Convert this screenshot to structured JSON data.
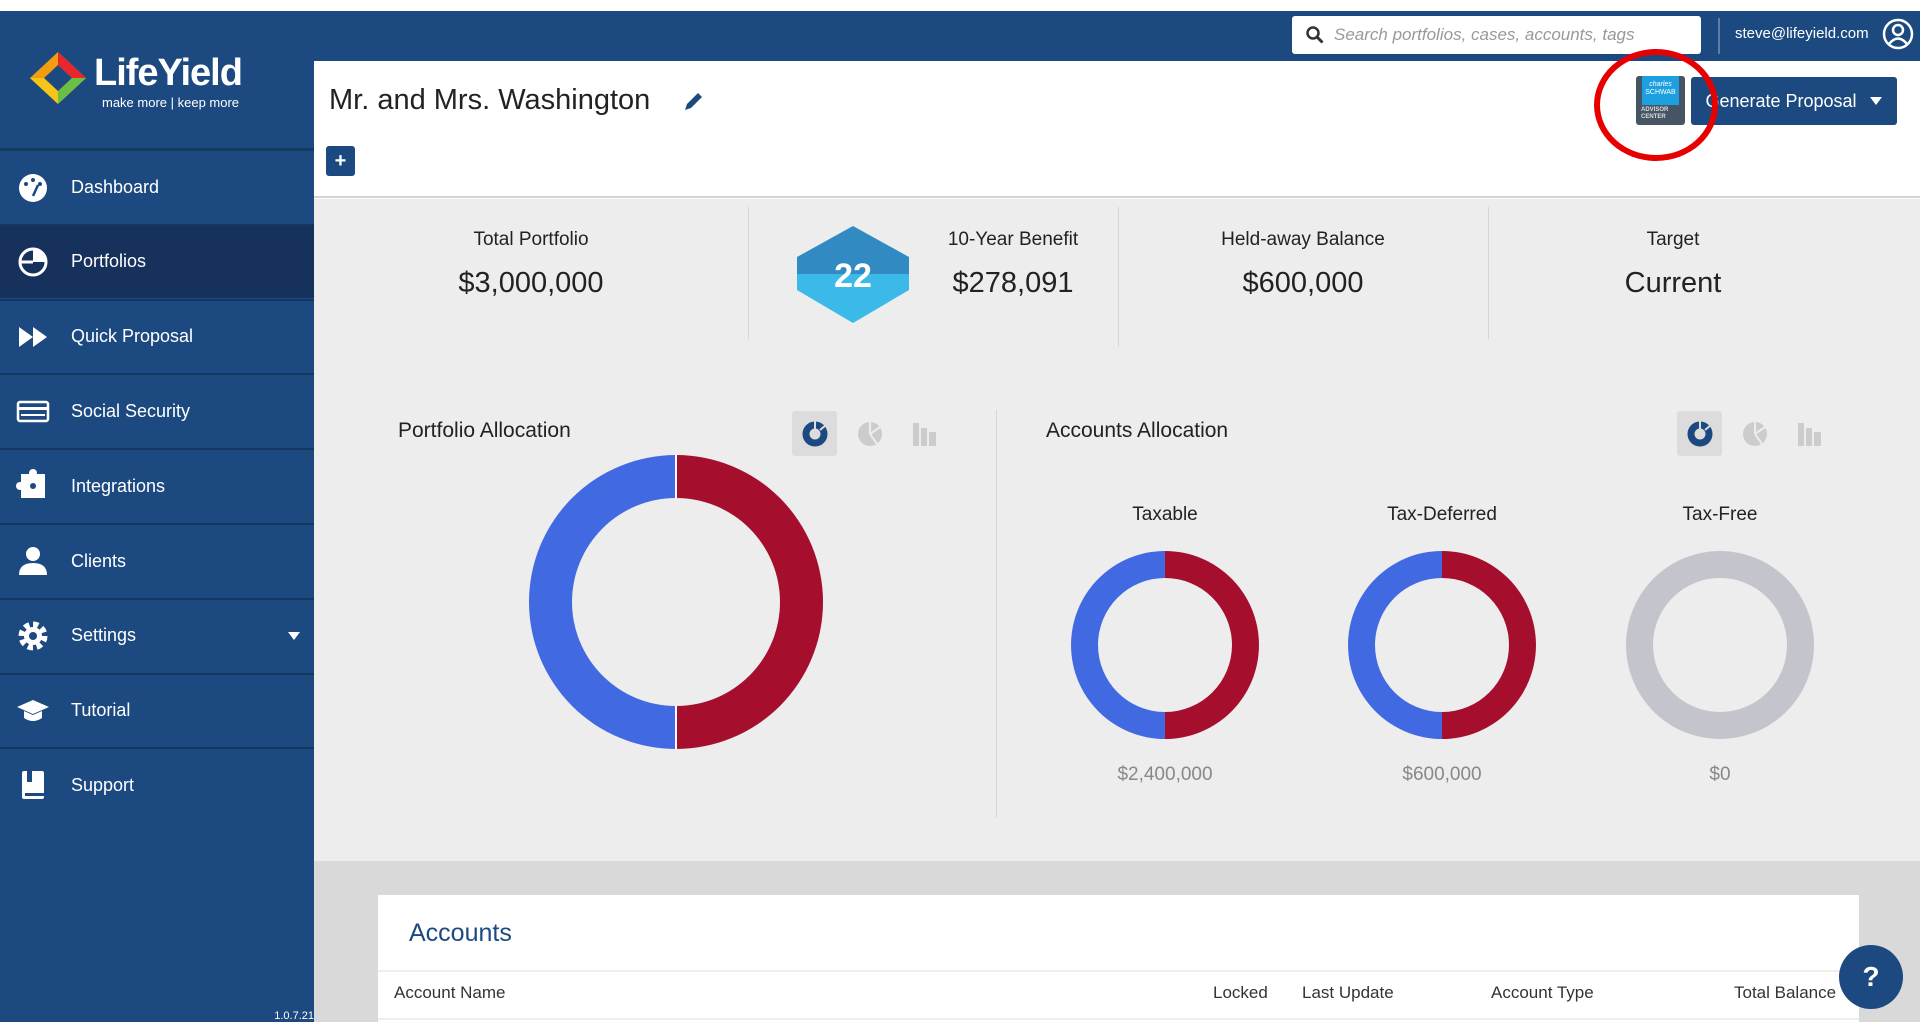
{
  "brand": {
    "name": "LifeYield",
    "tagline": "make more | keep more",
    "version": "1.0.7.21"
  },
  "topbar": {
    "search_placeholder": "Search portfolios, cases, accounts, tags",
    "user_email": "steve@lifeyield.com"
  },
  "sidebar": {
    "items": [
      {
        "label": "Dashboard",
        "icon": "dashboard-icon"
      },
      {
        "label": "Portfolios",
        "icon": "portfolio-icon",
        "active": true
      },
      {
        "label": "Quick Proposal",
        "icon": "fast-forward-icon"
      },
      {
        "label": "Social Security",
        "icon": "card-icon"
      },
      {
        "label": "Integrations",
        "icon": "puzzle-icon"
      },
      {
        "label": "Clients",
        "icon": "user-icon"
      },
      {
        "label": "Settings",
        "icon": "gear-icon"
      },
      {
        "label": "Tutorial",
        "icon": "graduation-cap-icon"
      },
      {
        "label": "Support",
        "icon": "book-icon"
      }
    ]
  },
  "header": {
    "title": "Mr. and Mrs. Washington",
    "add_label": "+",
    "generate_label": "Generate Proposal",
    "schwab": {
      "line1": "charles",
      "line2": "SCHWAB",
      "line3": "ADVISOR",
      "line4": "CENTER"
    }
  },
  "stats": {
    "total_portfolio": {
      "label": "Total Portfolio",
      "value": "$3,000,000"
    },
    "benefit": {
      "score": "22",
      "label": "10-Year Benefit",
      "value": "$278,091"
    },
    "held_away": {
      "label": "Held-away Balance",
      "value": "$600,000"
    },
    "target": {
      "label": "Target",
      "value": "Current"
    }
  },
  "portfolio_allocation": {
    "title": "Portfolio Allocation"
  },
  "accounts_allocation": {
    "title": "Accounts Allocation",
    "groups": [
      {
        "label": "Taxable",
        "amount": "$2,400,000"
      },
      {
        "label": "Tax-Deferred",
        "amount": "$600,000"
      },
      {
        "label": "Tax-Free",
        "amount": "$0"
      }
    ]
  },
  "colors": {
    "brand": "#1c4a80",
    "series_blue": "#4169e1",
    "series_red": "#a50e2d",
    "empty": "#c4c4cc",
    "annotation": "#e60000"
  },
  "accounts": {
    "title": "Accounts",
    "columns": [
      "Account Name",
      "Locked",
      "Last Update",
      "Account Type",
      "Total Balance"
    ]
  },
  "help_label": "?"
}
